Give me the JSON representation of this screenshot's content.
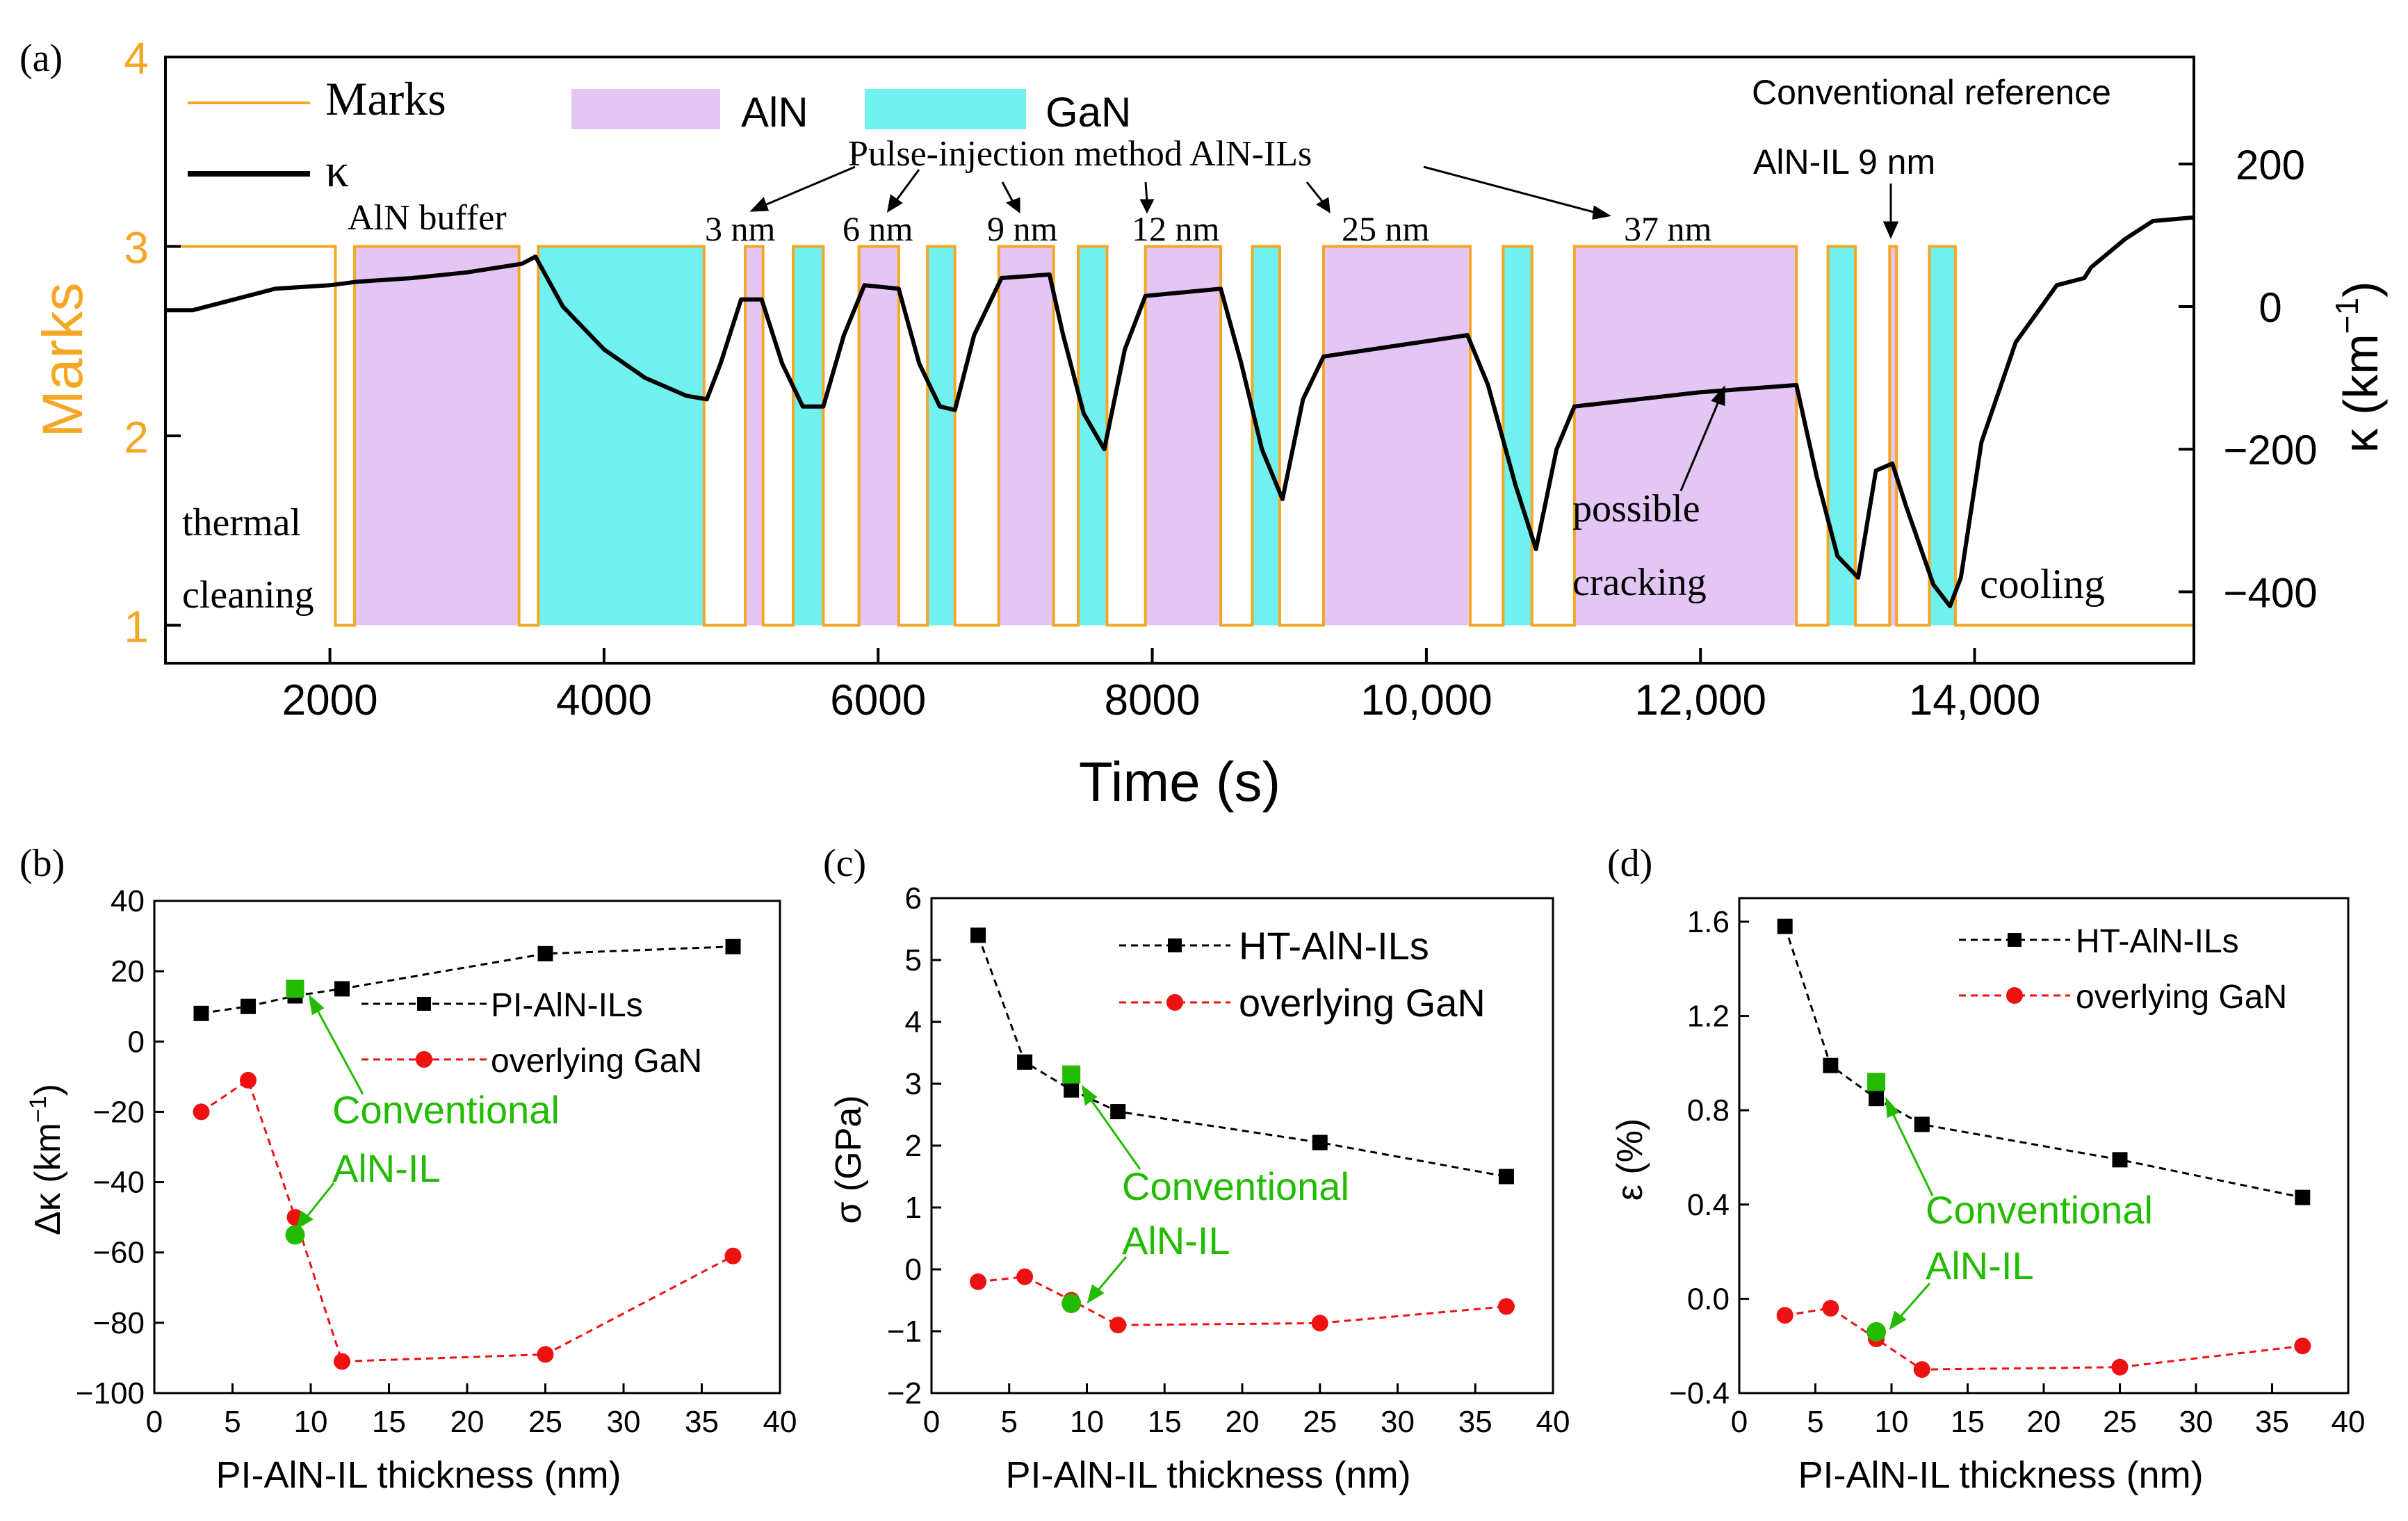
{
  "chart_data": [
    {
      "id": "a",
      "panel_label": "(a)",
      "type": "line",
      "xlabel": "Time (s)",
      "ylabel_left": "Marks",
      "ylabel_right_base": "κ (km",
      "ylabel_right_sup": "−1",
      "ylabel_right_end": ")",
      "xlim": [
        800,
        15600
      ],
      "ylim_left": [
        0.8,
        4
      ],
      "ylim_right": [
        -500,
        350
      ],
      "xticks": [
        2000,
        4000,
        6000,
        8000,
        10000,
        12000,
        14000
      ],
      "xtick_labels": [
        "2000",
        "4000",
        "6000",
        "8000",
        "10,000",
        "12,000",
        "14,000"
      ],
      "yticks_left": [
        1,
        2,
        3,
        4
      ],
      "yticks_right": [
        200,
        0,
        -200,
        -400
      ],
      "ytick_labels_right": [
        "200",
        "0",
        "−200",
        "−400"
      ],
      "legend": {
        "marks": "Marks",
        "kappa": "κ",
        "aln": "AlN",
        "gan": "GaN"
      },
      "colors": {
        "marks": "#f5a623",
        "aln_fill": "#e3c6f3",
        "gan_fill": "#70f0ee",
        "kappa": "#000000",
        "left_axis": "#f5a623"
      },
      "aln_segments": [
        [
          2180,
          3380
        ],
        [
          5030,
          5160
        ],
        [
          5860,
          6150
        ],
        [
          6880,
          7280
        ],
        [
          7950,
          8500
        ],
        [
          9250,
          10320
        ],
        [
          11080,
          12700
        ],
        [
          13380,
          13430
        ]
      ],
      "gan_segments": [
        [
          3520,
          4730
        ],
        [
          5380,
          5600
        ],
        [
          6360,
          6560
        ],
        [
          7460,
          7670
        ],
        [
          8730,
          8930
        ],
        [
          10560,
          10770
        ],
        [
          12930,
          13130
        ],
        [
          13670,
          13860
        ]
      ],
      "marks_steps": [
        [
          800,
          3
        ],
        [
          2040,
          1
        ],
        [
          2180,
          3
        ],
        [
          3380,
          1
        ],
        [
          3520,
          3
        ],
        [
          4730,
          1
        ],
        [
          5030,
          3
        ],
        [
          5160,
          1
        ],
        [
          5380,
          3
        ],
        [
          5600,
          1
        ],
        [
          5860,
          3
        ],
        [
          6150,
          1
        ],
        [
          6360,
          3
        ],
        [
          6560,
          1
        ],
        [
          6880,
          3
        ],
        [
          7280,
          1
        ],
        [
          7460,
          3
        ],
        [
          7670,
          1
        ],
        [
          7950,
          3
        ],
        [
          8500,
          1
        ],
        [
          8730,
          3
        ],
        [
          8930,
          1
        ],
        [
          9250,
          3
        ],
        [
          10320,
          1
        ],
        [
          10560,
          3
        ],
        [
          10770,
          1
        ],
        [
          11080,
          3
        ],
        [
          12700,
          1
        ],
        [
          12930,
          3
        ],
        [
          13130,
          1
        ],
        [
          13380,
          3
        ],
        [
          13430,
          1
        ],
        [
          13670,
          3
        ],
        [
          13860,
          1
        ],
        [
          15600,
          1
        ]
      ],
      "kappa_points": [
        [
          800,
          -5
        ],
        [
          1000,
          -5
        ],
        [
          1300,
          10
        ],
        [
          1600,
          25
        ],
        [
          2000,
          30
        ],
        [
          2200,
          35
        ],
        [
          2600,
          40
        ],
        [
          3000,
          48
        ],
        [
          3400,
          60
        ],
        [
          3500,
          70
        ],
        [
          3700,
          0
        ],
        [
          4000,
          -60
        ],
        [
          4300,
          -100
        ],
        [
          4600,
          -125
        ],
        [
          4750,
          -130
        ],
        [
          4850,
          -80
        ],
        [
          5000,
          10
        ],
        [
          5150,
          10
        ],
        [
          5300,
          -80
        ],
        [
          5450,
          -140
        ],
        [
          5600,
          -140
        ],
        [
          5750,
          -40
        ],
        [
          5900,
          30
        ],
        [
          6150,
          25
        ],
        [
          6300,
          -80
        ],
        [
          6450,
          -140
        ],
        [
          6560,
          -145
        ],
        [
          6700,
          -40
        ],
        [
          6900,
          40
        ],
        [
          7250,
          45
        ],
        [
          7350,
          -40
        ],
        [
          7500,
          -150
        ],
        [
          7650,
          -200
        ],
        [
          7800,
          -60
        ],
        [
          7950,
          15
        ],
        [
          8500,
          25
        ],
        [
          8650,
          -80
        ],
        [
          8800,
          -200
        ],
        [
          8950,
          -270
        ],
        [
          9100,
          -130
        ],
        [
          9250,
          -70
        ],
        [
          10300,
          -40
        ],
        [
          10450,
          -110
        ],
        [
          10650,
          -250
        ],
        [
          10800,
          -340
        ],
        [
          10950,
          -200
        ],
        [
          11080,
          -140
        ],
        [
          12000,
          -120
        ],
        [
          12700,
          -110
        ],
        [
          12850,
          -240
        ],
        [
          13000,
          -350
        ],
        [
          13150,
          -380
        ],
        [
          13280,
          -230
        ],
        [
          13400,
          -220
        ],
        [
          13500,
          -280
        ],
        [
          13700,
          -390
        ],
        [
          13820,
          -420
        ],
        [
          13900,
          -380
        ],
        [
          14050,
          -190
        ],
        [
          14300,
          -50
        ],
        [
          14600,
          30
        ],
        [
          14800,
          40
        ],
        [
          14850,
          55
        ],
        [
          15100,
          95
        ],
        [
          15300,
          120
        ],
        [
          15600,
          125
        ]
      ],
      "stage_texts": [
        "thermal",
        "cleaning",
        "AlN buffer",
        "cooling",
        "possible",
        "cracking"
      ],
      "pulse_title": "Pulse-injection method AlN-ILs",
      "thickness_labels": [
        "3 nm",
        "6 nm",
        "9 nm",
        "12 nm",
        "25 nm",
        "37 nm"
      ],
      "conventional_label_1": "Conventional reference",
      "conventional_label_2": "AlN-IL 9 nm"
    },
    {
      "id": "b",
      "panel_label": "(b)",
      "type": "scatter",
      "xlabel": "PI-AlN-IL thickness (nm)",
      "ylabel": "Δκ (km",
      "ylabel_sup": "−1",
      "ylabel_end": ")",
      "xlim": [
        0,
        40
      ],
      "ylim": [
        -100,
        40
      ],
      "xticks": [
        0,
        5,
        10,
        15,
        20,
        25,
        30,
        35,
        40
      ],
      "yticks": [
        -100,
        -80,
        -60,
        -40,
        -20,
        0,
        20,
        40
      ],
      "series": [
        {
          "name": "PI-AlN-ILs",
          "marker": "square",
          "color": "#000000",
          "x": [
            3,
            6,
            9,
            12,
            25,
            37
          ],
          "y": [
            8,
            10,
            13,
            15,
            25,
            27
          ]
        },
        {
          "name": "overlying GaN",
          "marker": "circle",
          "color": "#ee1111",
          "x": [
            3,
            6,
            9,
            12,
            25,
            37
          ],
          "y": [
            -20,
            -11,
            -50,
            -91,
            -89,
            -61
          ]
        }
      ],
      "conventional": {
        "color": "#22bb00",
        "x": 9,
        "y_top": 15,
        "y_bottom": -55
      },
      "annotation_1": "Conventional",
      "annotation_2": "AlN-IL"
    },
    {
      "id": "c",
      "panel_label": "(c)",
      "type": "scatter",
      "xlabel": "PI-AlN-IL thickness (nm)",
      "ylabel": "σ (GPa)",
      "xlim": [
        0,
        40
      ],
      "ylim": [
        -2,
        6
      ],
      "xticks": [
        0,
        5,
        10,
        15,
        20,
        25,
        30,
        35,
        40
      ],
      "yticks": [
        -2,
        -1,
        0,
        1,
        2,
        3,
        4,
        5,
        6
      ],
      "series": [
        {
          "name": "HT-AlN-ILs",
          "marker": "square",
          "color": "#000000",
          "x": [
            3,
            6,
            9,
            12,
            25,
            37
          ],
          "y": [
            5.4,
            3.35,
            2.9,
            2.55,
            2.05,
            1.5
          ]
        },
        {
          "name": "overlying GaN",
          "marker": "circle",
          "color": "#ee1111",
          "x": [
            3,
            6,
            9,
            12,
            25,
            37
          ],
          "y": [
            -0.2,
            -0.12,
            -0.5,
            -0.9,
            -0.87,
            -0.6
          ]
        }
      ],
      "conventional": {
        "color": "#22bb00",
        "x": 9,
        "y_top": 3.15,
        "y_bottom": -0.55
      },
      "annotation_1": "Conventional",
      "annotation_2": "AlN-IL"
    },
    {
      "id": "d",
      "panel_label": "(d)",
      "type": "scatter",
      "xlabel": "PI-AlN-IL thickness (nm)",
      "ylabel": "ε (%)",
      "xlim": [
        0,
        40
      ],
      "ylim": [
        -0.4,
        1.7
      ],
      "xticks": [
        0,
        5,
        10,
        15,
        20,
        25,
        30,
        35,
        40
      ],
      "yticks": [
        -0.4,
        0,
        0.4,
        0.8,
        1.2,
        1.6
      ],
      "ytick_labels": [
        "−0.4",
        "0.0",
        "0.4",
        "0.8",
        "1.2",
        "1.6"
      ],
      "series": [
        {
          "name": "HT-AlN-ILs",
          "marker": "square",
          "color": "#000000",
          "x": [
            3,
            6,
            9,
            12,
            25,
            37
          ],
          "y": [
            1.58,
            0.99,
            0.85,
            0.74,
            0.59,
            0.43
          ]
        },
        {
          "name": "overlying GaN",
          "marker": "circle",
          "color": "#ee1111",
          "x": [
            3,
            6,
            9,
            12,
            25,
            37
          ],
          "y": [
            -0.07,
            -0.04,
            -0.17,
            -0.3,
            -0.29,
            -0.2
          ]
        }
      ],
      "conventional": {
        "color": "#22bb00",
        "x": 9,
        "y_top": 0.92,
        "y_bottom": -0.14
      },
      "annotation_1": "Conventional",
      "annotation_2": "AlN-IL"
    }
  ]
}
